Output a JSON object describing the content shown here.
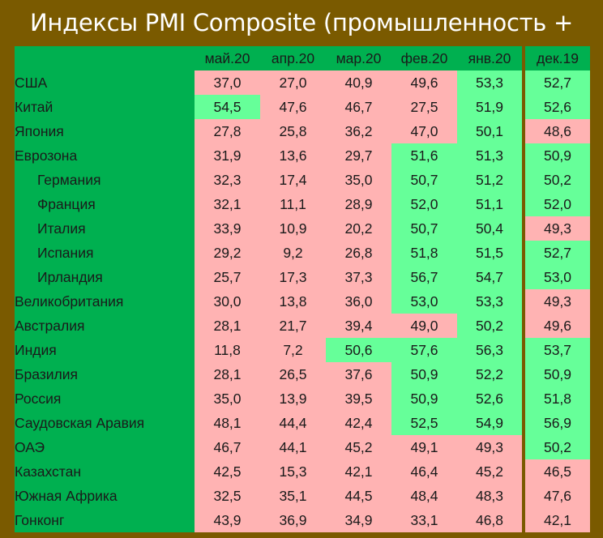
{
  "title": "Индексы PMI Composite (промышленность + услуги)",
  "colors": {
    "frame": "#7a5a00",
    "header_green": "#00b050",
    "below_50": "#ffb3b3",
    "above_50": "#66ff99"
  },
  "months": [
    "май.20",
    "апр.20",
    "мар.20",
    "фев.20",
    "янв.20",
    "дек.19"
  ],
  "rows": [
    {
      "country": "США",
      "values": [
        "37,0",
        "27,0",
        "40,9",
        "49,6",
        "53,3",
        "52,7"
      ]
    },
    {
      "country": "Китай",
      "values": [
        "54,5",
        "47,6",
        "46,7",
        "27,5",
        "51,9",
        "52,6"
      ]
    },
    {
      "country": "Япония",
      "values": [
        "27,8",
        "25,8",
        "36,2",
        "47,0",
        "50,1",
        "48,6"
      ]
    },
    {
      "country": "Еврозона",
      "values": [
        "31,9",
        "13,6",
        "29,7",
        "51,6",
        "51,3",
        "50,9"
      ]
    },
    {
      "country": "Германия",
      "values": [
        "32,3",
        "17,4",
        "35,0",
        "50,7",
        "51,2",
        "50,2"
      ]
    },
    {
      "country": "Франция",
      "values": [
        "32,1",
        "11,1",
        "28,9",
        "52,0",
        "51,1",
        "52,0"
      ]
    },
    {
      "country": "Италия",
      "values": [
        "33,9",
        "10,9",
        "20,2",
        "50,7",
        "50,4",
        "49,3"
      ]
    },
    {
      "country": "Испания",
      "values": [
        "29,2",
        "9,2",
        "26,8",
        "51,8",
        "51,5",
        "52,7"
      ]
    },
    {
      "country": "Ирландия",
      "values": [
        "25,7",
        "17,3",
        "37,3",
        "56,7",
        "54,7",
        "53,0"
      ]
    },
    {
      "country": "Великобритания",
      "values": [
        "30,0",
        "13,8",
        "36,0",
        "53,0",
        "53,3",
        "49,3"
      ]
    },
    {
      "country": "Австралия",
      "values": [
        "28,1",
        "21,7",
        "39,4",
        "49,0",
        "50,2",
        "49,6"
      ]
    },
    {
      "country": "Индия",
      "values": [
        "11,8",
        "7,2",
        "50,6",
        "57,6",
        "56,3",
        "53,7"
      ]
    },
    {
      "country": "Бразилия",
      "values": [
        "28,1",
        "26,5",
        "37,6",
        "50,9",
        "52,2",
        "50,9"
      ]
    },
    {
      "country": "Россия",
      "values": [
        "35,0",
        "13,9",
        "39,5",
        "50,9",
        "52,6",
        "51,8"
      ]
    },
    {
      "country": "Саудовская Аравия",
      "values": [
        "48,1",
        "44,4",
        "42,4",
        "52,5",
        "54,9",
        "56,9"
      ]
    },
    {
      "country": "ОАЭ",
      "values": [
        "46,7",
        "44,1",
        "45,2",
        "49,1",
        "49,3",
        "50,2"
      ]
    },
    {
      "country": "Казахстан",
      "values": [
        "42,5",
        "15,3",
        "42,1",
        "46,4",
        "45,2",
        "46,5"
      ]
    },
    {
      "country": "Южная Африка",
      "values": [
        "32,5",
        "35,1",
        "44,5",
        "48,4",
        "48,3",
        "47,6"
      ]
    },
    {
      "country": "Гонконг",
      "values": [
        "43,9",
        "36,9",
        "34,9",
        "33,1",
        "46,8",
        "42,1"
      ]
    }
  ]
}
